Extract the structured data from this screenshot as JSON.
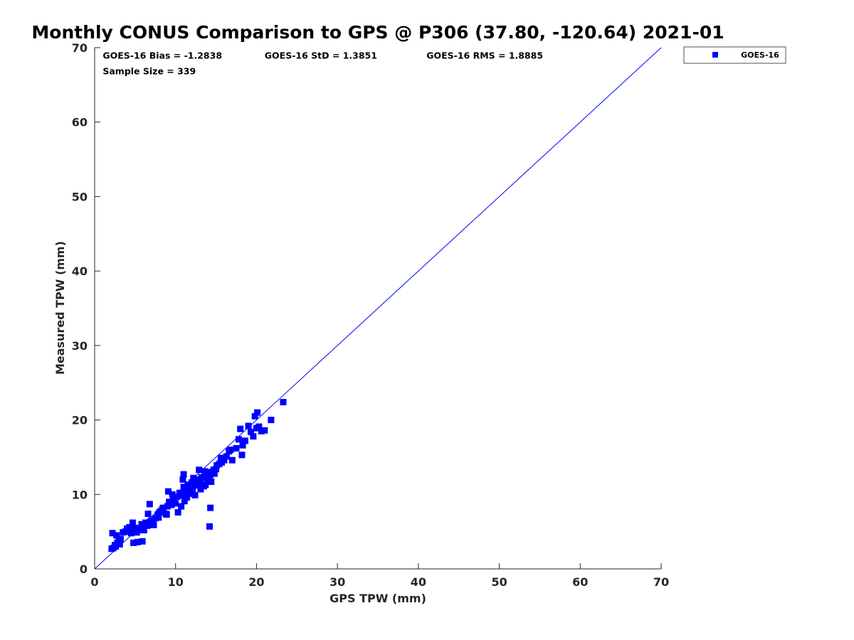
{
  "chart_data": {
    "type": "scatter",
    "title": "Monthly CONUS Comparison to GPS @ P306 (37.80, -120.64) 2021-01",
    "xlabel": "GPS TPW (mm)",
    "ylabel": "Measured TPW (mm)",
    "xlim": [
      0,
      70
    ],
    "ylim": [
      0,
      70
    ],
    "xticks": [
      0,
      10,
      20,
      30,
      40,
      50,
      60,
      70
    ],
    "yticks": [
      0,
      10,
      20,
      30,
      40,
      50,
      60,
      70
    ],
    "grid": false,
    "legend_position": "top-right outside",
    "annotations": [
      "GOES-16 Bias = -1.2838",
      "GOES-16 StD = 1.3851",
      "GOES-16 RMS = 1.8885",
      "Sample Size = 339"
    ],
    "reference_line": {
      "x": [
        0,
        70
      ],
      "y": [
        0,
        70
      ],
      "color": "#0000ff"
    },
    "series": [
      {
        "name": "GOES-16",
        "color": "#0000ff",
        "marker": "square",
        "x": [
          2.1,
          2.3,
          2.5,
          2.6,
          2.8,
          3.0,
          3.2,
          2.2,
          2.7,
          3.1,
          3.5,
          3.8,
          4.0,
          4.3,
          4.5,
          4.8,
          5.0,
          5.2,
          5.5,
          5.8,
          6.0,
          6.3,
          6.5,
          6.8,
          7.0,
          7.2,
          7.5,
          7.8,
          8.0,
          4.7,
          5.3,
          6.1,
          6.6,
          7.3,
          7.9,
          8.2,
          8.5,
          8.8,
          9.0,
          9.2,
          9.5,
          9.8,
          10.0,
          8.4,
          8.9,
          9.3,
          9.7,
          10.2,
          10.5,
          10.8,
          11.0,
          11.2,
          11.5,
          11.8,
          12.0,
          12.3,
          12.5,
          12.8,
          13.0,
          13.2,
          13.5,
          13.8,
          14.0,
          14.3,
          14.5,
          14.8,
          15.0,
          10.3,
          10.7,
          11.1,
          11.4,
          11.7,
          12.1,
          12.4,
          12.7,
          13.1,
          13.4,
          13.7,
          14.1,
          14.4,
          14.7,
          15.1,
          15.4,
          15.7,
          16.0,
          16.3,
          16.6,
          17.0,
          17.5,
          17.8,
          18.0,
          18.3,
          18.6,
          19.0,
          19.3,
          19.6,
          20.0,
          20.3,
          20.6,
          21.0,
          21.8,
          23.3,
          14.2,
          14.3,
          6.8,
          5.9,
          4.8,
          11.0,
          10.9,
          12.2,
          13.6,
          9.1,
          9.6,
          18.2,
          19.8,
          20.1,
          16.8,
          15.6,
          13.9,
          12.9
        ],
        "y": [
          2.7,
          2.8,
          3.2,
          3.0,
          3.5,
          3.8,
          4.0,
          4.8,
          4.5,
          3.3,
          4.9,
          5.0,
          5.4,
          5.6,
          4.8,
          5.1,
          5.5,
          4.9,
          5.2,
          6.0,
          5.6,
          6.2,
          5.8,
          6.3,
          6.5,
          6.0,
          6.8,
          7.3,
          7.6,
          6.2,
          3.6,
          5.2,
          7.4,
          5.9,
          6.9,
          7.8,
          8.2,
          7.4,
          8.4,
          9.0,
          8.6,
          9.1,
          8.8,
          8.1,
          7.3,
          8.9,
          9.4,
          9.7,
          10.2,
          9.9,
          11.0,
          10.4,
          11.3,
          10.8,
          11.6,
          11.2,
          12.0,
          11.5,
          11.9,
          12.3,
          11.1,
          12.5,
          11.8,
          12.6,
          13.0,
          12.8,
          13.4,
          7.6,
          8.4,
          9.1,
          9.6,
          10.1,
          10.5,
          9.9,
          11.4,
          10.7,
          12.2,
          11.3,
          12.4,
          11.7,
          13.3,
          13.9,
          14.1,
          14.3,
          14.6,
          15.1,
          15.8,
          14.6,
          16.2,
          17.4,
          18.8,
          16.6,
          17.2,
          19.2,
          18.4,
          17.8,
          18.9,
          19.1,
          18.5,
          18.6,
          20.0,
          22.4,
          5.7,
          8.2,
          8.7,
          3.7,
          3.5,
          12.7,
          12.0,
          12.2,
          13.1,
          10.4,
          10.0,
          15.3,
          20.5,
          21.0,
          16.0,
          14.9,
          13.0,
          13.3
        ]
      }
    ]
  }
}
